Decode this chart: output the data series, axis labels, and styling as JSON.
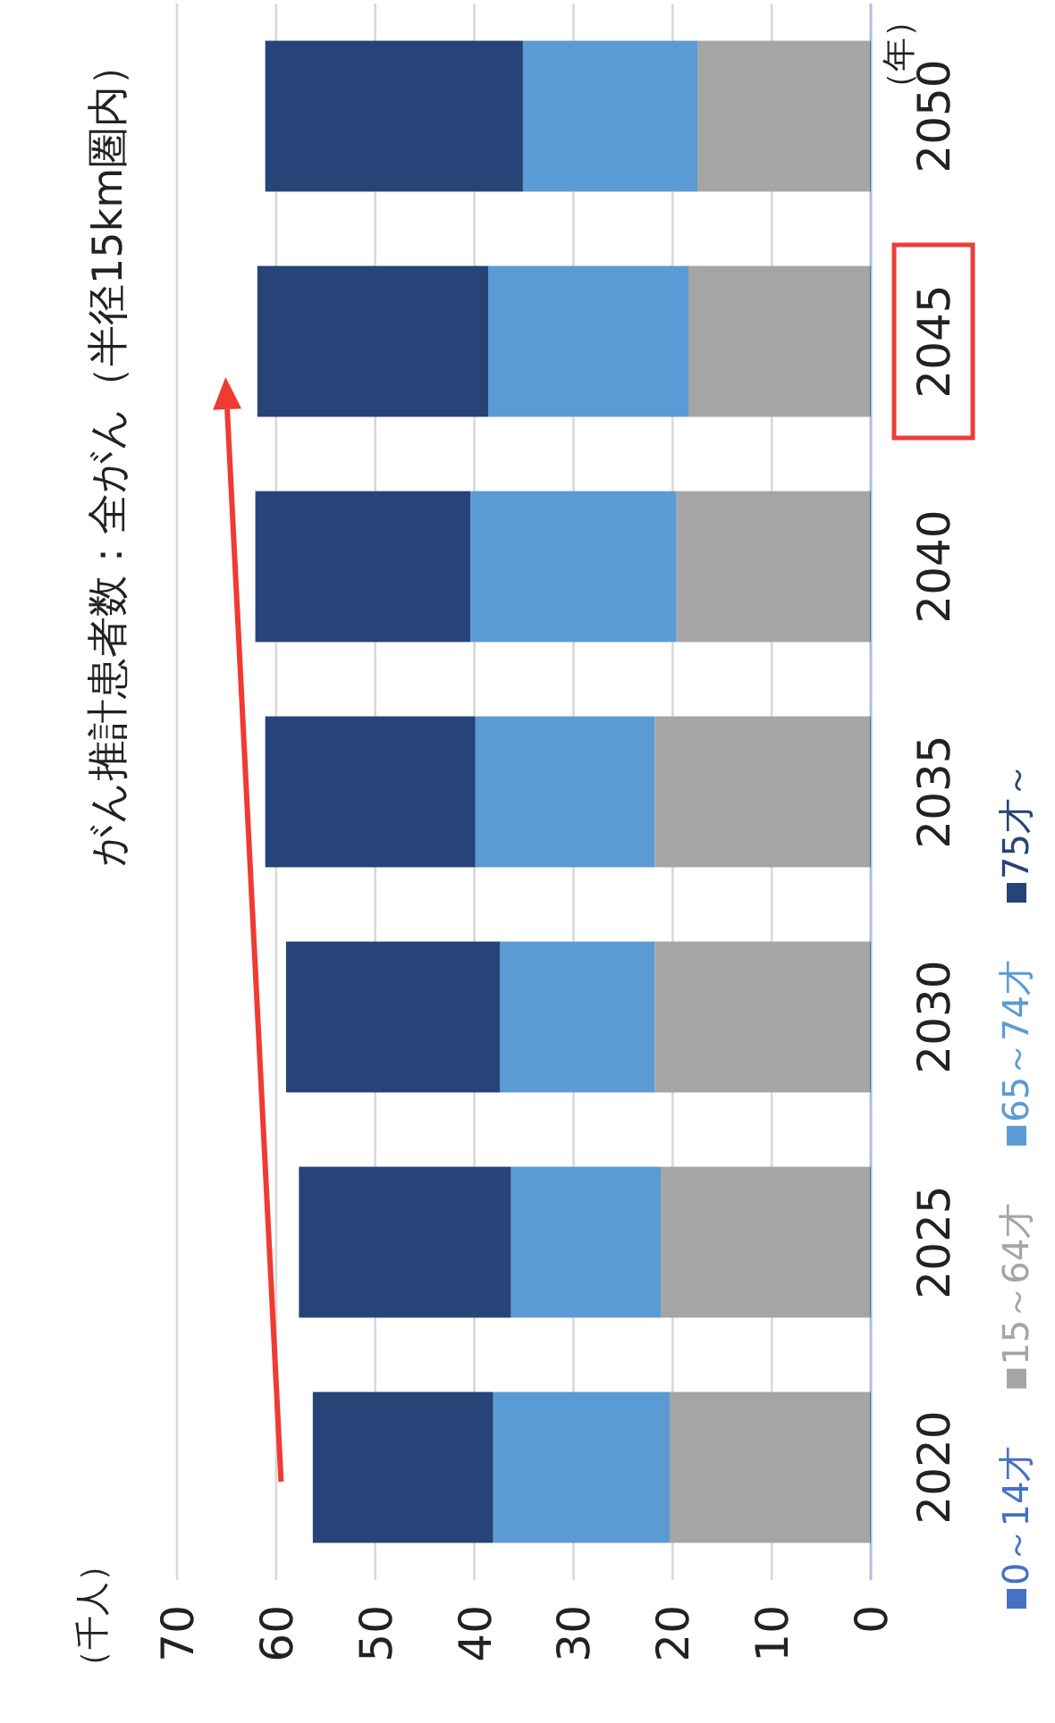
{
  "chart_data": {
    "type": "bar",
    "stacked": true,
    "orientation": "horizontal",
    "title": "がん推計患者数：全がん（半径15km圏内）",
    "annotations": [
      "（千人）"
    ],
    "ylabel": "（年）",
    "categories": [
      "2050",
      "2045",
      "2040",
      "2035",
      "2030",
      "2025",
      "2020"
    ],
    "series": [
      {
        "name": "0～14才",
        "color": "#4472c4",
        "values": [
          0.1,
          0.1,
          0.1,
          0.1,
          0.1,
          0.1,
          0.1
        ]
      },
      {
        "name": "15～64才",
        "color": "#a5a5a5",
        "values": [
          17.4,
          18.3,
          19.5,
          21.7,
          21.7,
          21.1,
          20.2
        ]
      },
      {
        "name": "65～74才",
        "color": "#5b9bd5",
        "values": [
          17.6,
          20.2,
          20.8,
          18.1,
          15.6,
          15.1,
          17.8
        ]
      },
      {
        "name": "75才～",
        "color": "#264478",
        "values": [
          26.0,
          23.3,
          21.7,
          21.2,
          21.6,
          21.4,
          18.2
        ]
      }
    ],
    "xlim": [
      70,
      0
    ],
    "xticks": [
      0,
      10,
      20,
      30,
      40,
      50,
      60,
      70
    ],
    "grid": "x",
    "legend": "right"
  }
}
